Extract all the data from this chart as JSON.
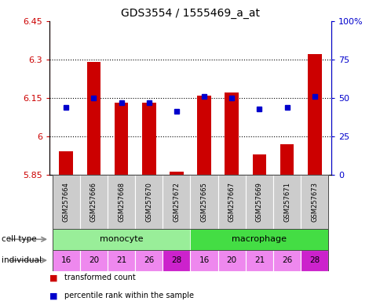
{
  "title": "GDS3554 / 1555469_a_at",
  "samples": [
    "GSM257664",
    "GSM257666",
    "GSM257668",
    "GSM257670",
    "GSM257672",
    "GSM257665",
    "GSM257667",
    "GSM257669",
    "GSM257671",
    "GSM257673"
  ],
  "red_values": [
    5.94,
    6.29,
    6.13,
    6.13,
    5.86,
    6.16,
    6.17,
    5.93,
    5.97,
    6.32
  ],
  "blue_values": [
    44,
    50,
    47,
    47,
    41,
    51,
    50,
    43,
    44,
    51
  ],
  "ylim_left": [
    5.85,
    6.45
  ],
  "ylim_right": [
    0,
    100
  ],
  "yticks_left": [
    5.85,
    6.0,
    6.15,
    6.3,
    6.45
  ],
  "ytick_labels_left": [
    "5.85",
    "6",
    "6.15",
    "6.3",
    "6.45"
  ],
  "yticks_right": [
    0,
    25,
    50,
    75,
    100
  ],
  "ytick_labels_right": [
    "0",
    "25",
    "50",
    "75",
    "100%"
  ],
  "individuals": [
    "16",
    "20",
    "21",
    "26",
    "28",
    "16",
    "20",
    "21",
    "26",
    "28"
  ],
  "cell_type_monocyte_color": "#99ee99",
  "cell_type_macrophage_color": "#44dd44",
  "ind_light_color": "#ee88ee",
  "ind_dark_color": "#cc22cc",
  "bar_color": "#cc0000",
  "dot_color": "#0000cc",
  "yticklabel_left_color": "#cc0000",
  "yticklabel_right_color": "#0000cc",
  "legend_red_label": "transformed count",
  "legend_blue_label": "percentile rank within the sample",
  "cell_type_label": "cell type",
  "individual_label": "individual",
  "xticklabel_bg": "#cccccc",
  "dotted_lines": [
    6.0,
    6.15,
    6.3
  ]
}
